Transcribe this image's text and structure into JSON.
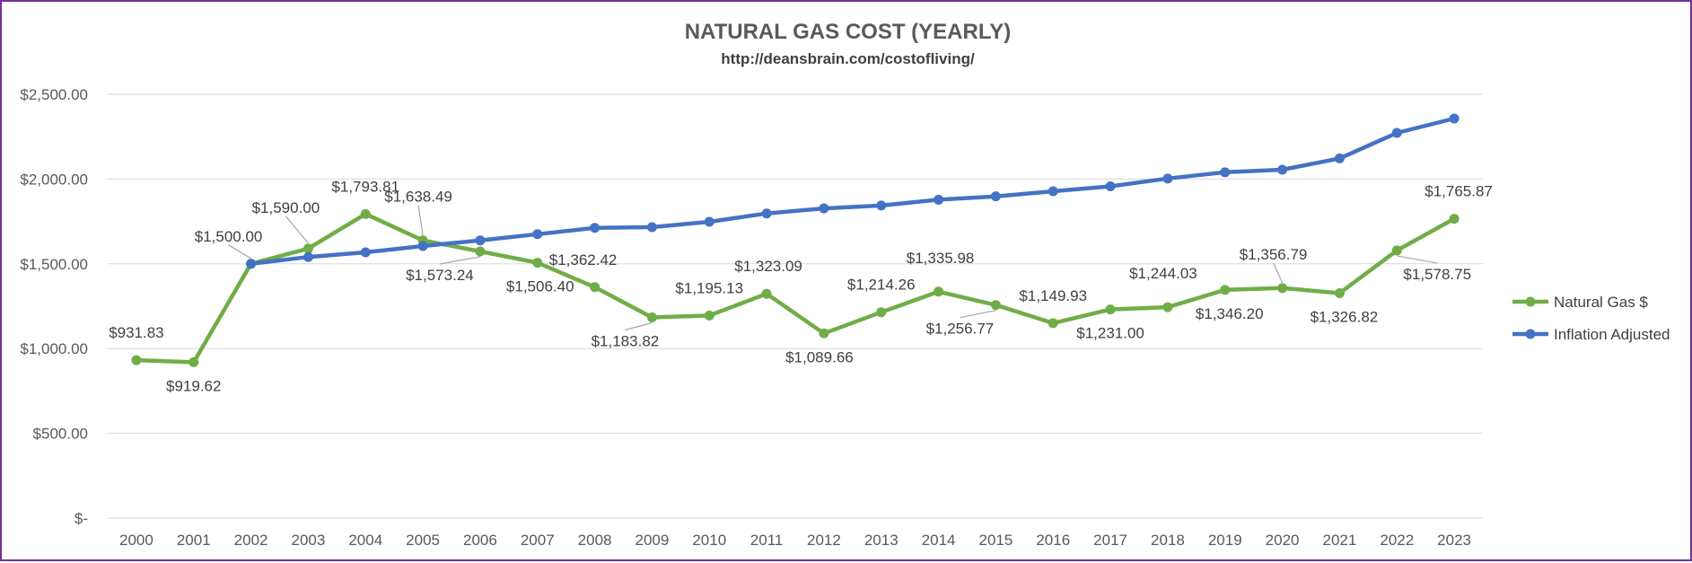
{
  "chart_data": {
    "type": "line",
    "title": "NATURAL GAS COST (YEARLY)",
    "subtitle": "http://deansbrain.com/costofliving/",
    "xlabel": "",
    "ylabel": "",
    "categories": [
      "2000",
      "2001",
      "2002",
      "2003",
      "2004",
      "2005",
      "2006",
      "2007",
      "2008",
      "2009",
      "2010",
      "2011",
      "2012",
      "2013",
      "2014",
      "2015",
      "2016",
      "2017",
      "2018",
      "2019",
      "2020",
      "2021",
      "2022",
      "2023"
    ],
    "ylim": [
      0,
      2500
    ],
    "yticks": [
      0,
      500,
      1000,
      1500,
      2000,
      2500
    ],
    "ytick_labels": [
      "$-",
      "$500.00",
      "$1,000.00",
      "$1,500.00",
      "$2,000.00",
      "$2,500.00"
    ],
    "grid": true,
    "legend_position": "right",
    "series": [
      {
        "name": "Natural Gas $",
        "color": "#70ad47",
        "values": [
          931.83,
          919.62,
          1500.0,
          1590.0,
          1793.81,
          1638.49,
          1573.24,
          1506.4,
          1362.42,
          1183.82,
          1195.13,
          1323.09,
          1089.66,
          1214.26,
          1335.98,
          1256.77,
          1149.93,
          1231.0,
          1244.03,
          1346.2,
          1356.79,
          1326.82,
          1578.75,
          1765.87
        ],
        "data_labels": [
          "$931.83",
          "$919.62",
          "$1,500.00",
          "$1,590.00",
          "$1,793.81",
          "$1,638.49",
          "$1,573.24",
          "$1,506.40",
          "$1,362.42",
          "$1,183.82",
          "$1,195.13",
          "$1,323.09",
          "$1,089.66",
          "$1,214.26",
          "$1,335.98",
          "$1,256.77",
          "$1,149.93",
          "$1,231.00",
          "$1,244.03",
          "$1,346.20",
          "$1,356.79",
          "$1,326.82",
          "$1,578.75",
          "$1,765.87"
        ]
      },
      {
        "name": "Inflation Adjusted",
        "color": "#4472c4",
        "values": [
          null,
          null,
          1500,
          1540,
          1568,
          1605,
          1638,
          1675,
          1712,
          1716,
          1748,
          1797,
          1827,
          1844,
          1878,
          1898,
          1928,
          1957,
          2003,
          2040,
          2055,
          2122,
          2272,
          2357
        ]
      }
    ]
  }
}
